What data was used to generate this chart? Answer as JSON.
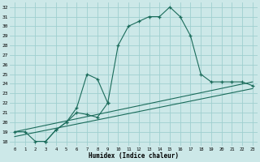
{
  "xlabel": "Humidex (Indice chaleur)",
  "bg_color": "#cce8e8",
  "grid_color": "#9fcfcf",
  "line_color": "#1a6b5a",
  "xlim": [
    -0.5,
    23.5
  ],
  "ylim": [
    17.5,
    32.5
  ],
  "xticks": [
    0,
    1,
    2,
    3,
    4,
    5,
    6,
    7,
    8,
    9,
    10,
    11,
    12,
    13,
    14,
    15,
    16,
    17,
    18,
    19,
    20,
    21,
    22,
    23
  ],
  "yticks": [
    18,
    19,
    20,
    21,
    22,
    23,
    24,
    25,
    26,
    27,
    28,
    29,
    30,
    31,
    32
  ],
  "series1_x": [
    0,
    1,
    2,
    3,
    4,
    5,
    6,
    7,
    8,
    9,
    10,
    11,
    12,
    13,
    14,
    15,
    16,
    17,
    18,
    19,
    20,
    21,
    22,
    23
  ],
  "series1_y": [
    19.0,
    19.0,
    18.0,
    18.0,
    19.2,
    20.0,
    21.0,
    20.8,
    20.5,
    22.0,
    28.0,
    30.0,
    30.5,
    31.0,
    31.0,
    32.0,
    31.0,
    29.0,
    25.0,
    24.2,
    24.2,
    24.2,
    24.2,
    23.8
  ],
  "series2_x": [
    3,
    4,
    5,
    6,
    7,
    8,
    9
  ],
  "series2_y": [
    18.0,
    19.2,
    20.0,
    21.5,
    25.0,
    24.5,
    22.0
  ],
  "series3_x": [
    0,
    23
  ],
  "series3_y": [
    19.0,
    24.2
  ],
  "series4_x": [
    0,
    23
  ],
  "series4_y": [
    18.5,
    23.5
  ]
}
